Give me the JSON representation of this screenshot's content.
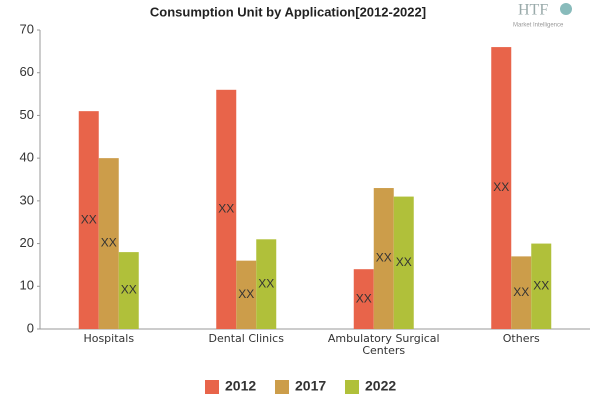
{
  "chart_data": {
    "type": "bar",
    "title": "Consumption Unit by  Application[2012-2022]",
    "categories": [
      "Hospitals",
      "Dental Clinics",
      "Ambulatory Surgical Centers",
      "Others"
    ],
    "series": [
      {
        "name": "2012",
        "color": "#e8644a",
        "values": [
          51,
          56,
          14,
          66
        ],
        "value_labels": [
          "XX",
          "XX",
          "XX",
          "XX"
        ]
      },
      {
        "name": "2017",
        "color": "#cc9d4a",
        "values": [
          40,
          16,
          33,
          17
        ],
        "value_labels": [
          "XX",
          "XX",
          "XX",
          "XX"
        ]
      },
      {
        "name": "2022",
        "color": "#b0c03a",
        "values": [
          18,
          21,
          31,
          20
        ],
        "value_labels": [
          "XX",
          "XX",
          "XX",
          "XX"
        ]
      }
    ],
    "ylim": [
      0,
      70
    ],
    "yticks": [
      0,
      10,
      20,
      30,
      40,
      50,
      60,
      70
    ],
    "grid": false,
    "legend": "bottom"
  },
  "logo": {
    "name": "HTF",
    "tagline": "Market Intelligence"
  }
}
